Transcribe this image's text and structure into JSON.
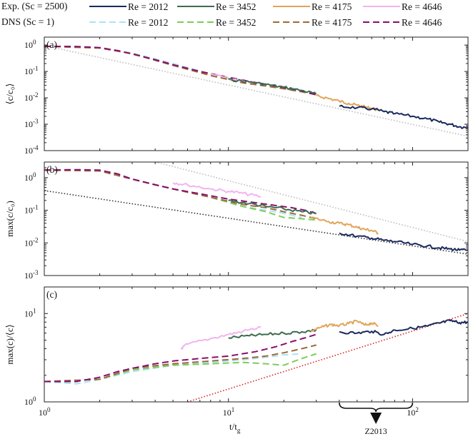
{
  "figure": {
    "xlabel": "t/t",
    "xlabel_sub": "g",
    "legend": {
      "exp_title": "Exp. (Sc = 2500)",
      "dns_title": "DNS (Sc = 1)",
      "entries": [
        {
          "row": 0,
          "label": "Re = 2012",
          "color": "#1a2a5e",
          "dash": "solid"
        },
        {
          "row": 0,
          "label": "Re = 3452",
          "color": "#3d6b50",
          "dash": "solid"
        },
        {
          "row": 0,
          "label": "Re = 4175",
          "color": "#e0a55a",
          "dash": "solid"
        },
        {
          "row": 0,
          "label": "Re = 4646",
          "color": "#f2b3ee",
          "dash": "solid"
        },
        {
          "row": 1,
          "label": "Re = 2012",
          "color": "#a9e3f5",
          "dash": "dashed"
        },
        {
          "row": 1,
          "label": "Re = 3452",
          "color": "#7ccc5a",
          "dash": "dashed"
        },
        {
          "row": 1,
          "label": "Re = 4175",
          "color": "#9c6a3a",
          "dash": "dashed"
        },
        {
          "row": 1,
          "label": "Re = 4646",
          "color": "#8a0d6e",
          "dash": "dashed"
        }
      ]
    },
    "annotation": {
      "label": "Z2013",
      "x_range": [
        40,
        100
      ]
    },
    "x_tick_labels": [
      "10",
      "10",
      "10"
    ],
    "x_tick_exps": [
      "0",
      "1",
      "2"
    ]
  },
  "chart_data": [
    {
      "type": "line",
      "panel": "(a)",
      "ylabel": "⟨c/c₀⟩",
      "xscale": "log",
      "yscale": "log",
      "xlim": [
        1,
        200
      ],
      "ylim": [
        0.0001,
        2
      ],
      "y_ticks": [
        {
          "v": 1,
          "base": "10",
          "exp": "0"
        },
        {
          "v": 0.1,
          "base": "10",
          "exp": "-1"
        },
        {
          "v": 0.01,
          "base": "10",
          "exp": "-2"
        },
        {
          "v": 0.001,
          "base": "10",
          "exp": "-3"
        },
        {
          "v": 0.0001,
          "base": "10",
          "exp": "-4"
        }
      ],
      "series": [
        {
          "name": "Reference slope",
          "color": "#bbbbbb",
          "style": "dotted",
          "x": [
            1,
            200
          ],
          "y": [
            0.95,
            0.00035
          ]
        },
        {
          "name": "DNS Re = 2012",
          "color": "#a9e3f5",
          "style": "dashed",
          "x": [
            1,
            1.5,
            2,
            3,
            5,
            8,
            12,
            16,
            20,
            25
          ],
          "y": [
            0.9,
            0.88,
            0.78,
            0.5,
            0.2,
            0.08,
            0.045,
            0.034,
            0.027,
            0.02
          ]
        },
        {
          "name": "DNS Re = 3452",
          "color": "#7ccc5a",
          "style": "dashed",
          "x": [
            1,
            2,
            3,
            5,
            8,
            12,
            16,
            20,
            25,
            30
          ],
          "y": [
            0.9,
            0.78,
            0.48,
            0.18,
            0.075,
            0.04,
            0.03,
            0.023,
            0.018,
            0.014
          ]
        },
        {
          "name": "DNS Re = 4175",
          "color": "#9c6a3a",
          "style": "dashed",
          "x": [
            1,
            2,
            3,
            5,
            8,
            12,
            16,
            20,
            25,
            30
          ],
          "y": [
            0.9,
            0.77,
            0.47,
            0.17,
            0.07,
            0.037,
            0.028,
            0.022,
            0.017,
            0.013
          ]
        },
        {
          "name": "DNS Re = 4646",
          "color": "#8a0d6e",
          "style": "dashed",
          "x": [
            1,
            1.5,
            2,
            2.5,
            3,
            4,
            5,
            7,
            10,
            14,
            18,
            22,
            26,
            30
          ],
          "y": [
            0.9,
            0.88,
            0.8,
            0.62,
            0.46,
            0.28,
            0.18,
            0.1,
            0.06,
            0.038,
            0.028,
            0.022,
            0.017,
            0.013
          ]
        },
        {
          "name": "Exp. Re = 4646",
          "color": "#f2b3ee",
          "style": "solid",
          "x": [
            8,
            10,
            12,
            15
          ],
          "y": [
            0.08,
            0.055,
            0.042,
            0.034
          ]
        },
        {
          "name": "Exp. Re = 3452",
          "color": "#3d6b50",
          "style": "solid",
          "x": [
            10,
            13,
            16,
            20,
            25,
            30
          ],
          "y": [
            0.05,
            0.04,
            0.032,
            0.025,
            0.019,
            0.014
          ]
        },
        {
          "name": "Exp. Re = 4175",
          "color": "#e0a55a",
          "style": "solid",
          "x": [
            30,
            35,
            40,
            45,
            50,
            55,
            60,
            65
          ],
          "y": [
            0.012,
            0.0095,
            0.0075,
            0.0062,
            0.0052,
            0.0045,
            0.004,
            0.0035
          ]
        },
        {
          "name": "Exp. Re = 2012",
          "color": "#1a2a5e",
          "style": "solid",
          "x": [
            40,
            50,
            60,
            70,
            80,
            100,
            120,
            140,
            160,
            180,
            200
          ],
          "y": [
            0.0048,
            0.0042,
            0.0038,
            0.003,
            0.0025,
            0.002,
            0.0016,
            0.0012,
            0.001,
            0.0008,
            0.00075
          ]
        }
      ]
    },
    {
      "type": "line",
      "panel": "(b)",
      "ylabel": "max(c/c₀)",
      "xscale": "log",
      "yscale": "log",
      "xlim": [
        1,
        200
      ],
      "ylim": [
        0.001,
        3
      ],
      "y_ticks": [
        {
          "v": 1,
          "base": "10",
          "exp": "0"
        },
        {
          "v": 0.1,
          "base": "10",
          "exp": "-1"
        },
        {
          "v": 0.01,
          "base": "10",
          "exp": "-2"
        },
        {
          "v": 0.001,
          "base": "10",
          "exp": "-3"
        }
      ],
      "series": [
        {
          "name": "Upper reference slope",
          "color": "#bbbbbb",
          "style": "dotted",
          "x": [
            4,
            200
          ],
          "y": [
            3,
            0.011
          ]
        },
        {
          "name": "Lower reference slope",
          "color": "#333333",
          "style": "dotted",
          "x": [
            1,
            200
          ],
          "y": [
            0.4,
            0.0045
          ]
        },
        {
          "name": "DNS Re = 2012",
          "color": "#a9e3f5",
          "style": "dashed",
          "x": [
            1,
            1.5,
            2,
            3,
            5,
            8,
            12,
            16,
            20,
            25
          ],
          "y": [
            1.7,
            1.7,
            1.6,
            0.9,
            0.45,
            0.25,
            0.13,
            0.1,
            0.08,
            0.06
          ]
        },
        {
          "name": "DNS Re = 3452",
          "color": "#7ccc5a",
          "style": "dashed",
          "x": [
            1,
            2,
            3,
            5,
            8,
            12,
            16,
            20,
            25,
            30
          ],
          "y": [
            1.7,
            1.6,
            0.9,
            0.45,
            0.25,
            0.13,
            0.09,
            0.06,
            0.055,
            0.05
          ]
        },
        {
          "name": "DNS Re = 4175",
          "color": "#9c6a3a",
          "style": "dashed",
          "x": [
            1,
            2,
            3,
            5,
            8,
            12,
            16,
            20,
            25,
            30
          ],
          "y": [
            1.7,
            1.6,
            0.9,
            0.45,
            0.25,
            0.15,
            0.12,
            0.09,
            0.07,
            0.055
          ]
        },
        {
          "name": "DNS Re = 4646",
          "color": "#8a0d6e",
          "style": "dashed",
          "x": [
            1,
            1.5,
            2,
            2.5,
            3,
            4,
            5,
            7,
            10,
            14,
            18,
            22,
            26,
            30
          ],
          "y": [
            1.7,
            1.75,
            1.7,
            1.3,
            0.9,
            0.6,
            0.45,
            0.32,
            0.22,
            0.17,
            0.14,
            0.12,
            0.1,
            0.08
          ]
        },
        {
          "name": "Exp. Re = 4646",
          "color": "#f2b3ee",
          "style": "solid",
          "x": [
            5,
            6,
            8,
            10,
            12,
            15
          ],
          "y": [
            0.7,
            0.6,
            0.45,
            0.38,
            0.33,
            0.26
          ]
        },
        {
          "name": "Exp. Re = 3452",
          "color": "#3d6b50",
          "style": "solid",
          "x": [
            10,
            13,
            16,
            20,
            25,
            30
          ],
          "y": [
            0.2,
            0.16,
            0.13,
            0.11,
            0.09,
            0.08
          ]
        },
        {
          "name": "Exp. Re = 4175",
          "color": "#e0a55a",
          "style": "solid",
          "x": [
            28,
            35,
            40,
            45,
            50,
            55,
            60,
            65
          ],
          "y": [
            0.06,
            0.045,
            0.04,
            0.036,
            0.03,
            0.026,
            0.024,
            0.02
          ]
        },
        {
          "name": "Exp. Re = 2012",
          "color": "#1a2a5e",
          "style": "solid",
          "x": [
            40,
            50,
            60,
            70,
            80,
            100,
            120,
            140,
            160,
            180,
            200
          ],
          "y": [
            0.02,
            0.016,
            0.014,
            0.012,
            0.011,
            0.009,
            0.008,
            0.007,
            0.0065,
            0.006,
            0.006
          ]
        }
      ]
    },
    {
      "type": "line",
      "panel": "(c)",
      "ylabel": "max(c)/⟨c⟩",
      "xscale": "log",
      "yscale": "log",
      "xlim": [
        1,
        200
      ],
      "ylim": [
        1,
        20
      ],
      "y_ticks": [
        {
          "v": 1,
          "base": "10",
          "exp": "0"
        },
        {
          "v": 10,
          "base": "10",
          "exp": "1"
        }
      ],
      "series": [
        {
          "name": "Reference slope",
          "color": "#dd2222",
          "style": "dotted",
          "x": [
            6,
            200
          ],
          "y": [
            1,
            10
          ]
        },
        {
          "name": "DNS Re = 2012",
          "color": "#a9e3f5",
          "style": "dashed",
          "x": [
            1,
            1.5,
            2,
            3,
            5,
            8,
            12,
            16,
            20,
            25
          ],
          "y": [
            1.7,
            1.6,
            1.8,
            2.2,
            2.6,
            2.8,
            3.0,
            3.2,
            3.4,
            3.5
          ]
        },
        {
          "name": "DNS Re = 3452",
          "color": "#7ccc5a",
          "style": "dashed",
          "x": [
            1,
            2,
            3,
            5,
            8,
            12,
            16,
            20,
            25,
            30
          ],
          "y": [
            1.7,
            1.8,
            2.3,
            2.6,
            2.7,
            2.8,
            2.7,
            2.6,
            3.1,
            3.5
          ]
        },
        {
          "name": "DNS Re = 4175",
          "color": "#9c6a3a",
          "style": "dashed",
          "x": [
            1,
            2,
            3,
            5,
            8,
            12,
            16,
            20,
            25,
            30
          ],
          "y": [
            1.7,
            1.8,
            2.4,
            2.7,
            2.9,
            3.1,
            3.3,
            3.6,
            4.0,
            4.4
          ]
        },
        {
          "name": "DNS Re = 4646",
          "color": "#8a0d6e",
          "style": "dashed",
          "x": [
            1,
            1.5,
            2,
            2.5,
            3,
            4,
            5,
            7,
            10,
            14,
            18,
            22,
            26,
            30
          ],
          "y": [
            1.7,
            1.7,
            1.9,
            2.2,
            2.4,
            2.7,
            2.9,
            3.1,
            3.3,
            3.7,
            4.2,
            4.8,
            5.3,
            5.8
          ]
        },
        {
          "name": "Exp. Re = 4646",
          "color": "#f2b3ee",
          "style": "solid",
          "x": [
            5.5,
            6,
            8,
            10,
            12,
            15
          ],
          "y": [
            4.0,
            4.5,
            5.2,
            5.8,
            6.3,
            7.0
          ]
        },
        {
          "name": "Exp. Re = 3452",
          "color": "#3d6b50",
          "style": "solid",
          "x": [
            10,
            13,
            16,
            20,
            25,
            30
          ],
          "y": [
            5.3,
            5.6,
            5.8,
            6.0,
            6.2,
            6.5
          ]
        },
        {
          "name": "Exp. Re = 4175",
          "color": "#e0a55a",
          "style": "solid",
          "x": [
            28,
            32,
            36,
            40,
            45,
            50,
            55,
            60,
            65
          ],
          "y": [
            6.3,
            7.0,
            7.5,
            7.3,
            7.7,
            8.2,
            7.4,
            7.8,
            7.3
          ]
        },
        {
          "name": "Exp. Re = 2012",
          "color": "#1a2a5e",
          "style": "solid",
          "x": [
            40,
            50,
            60,
            70,
            80,
            100,
            120,
            140,
            160,
            180,
            200
          ],
          "y": [
            6.2,
            6.0,
            6.3,
            5.8,
            6.5,
            6.8,
            7.2,
            7.8,
            8.3,
            7.9,
            8.0
          ]
        }
      ]
    }
  ]
}
